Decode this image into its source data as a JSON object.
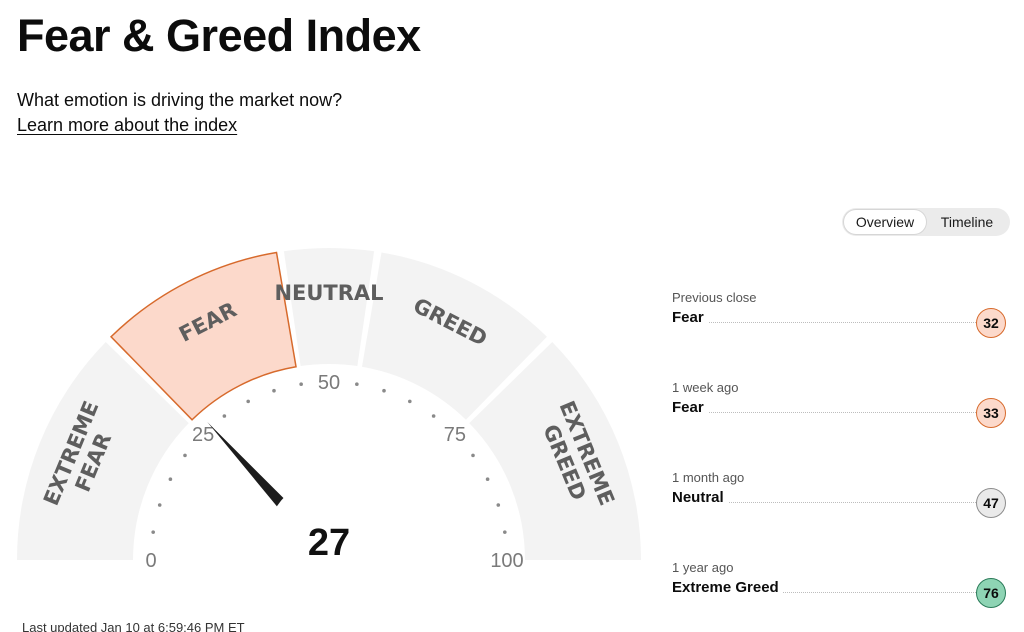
{
  "page": {
    "title": "Fear & Greed Index",
    "subtitle": "What emotion is driving the market now?",
    "learn_link": "Learn more about the index",
    "last_updated": "Last updated Jan 10 at 6:59:46 PM ET"
  },
  "toggle": {
    "options": [
      "Overview",
      "Timeline"
    ],
    "selected": "Overview"
  },
  "gauge": {
    "value": 27,
    "value_label": "27",
    "segments": [
      "EXTREME FEAR",
      "FEAR",
      "NEUTRAL",
      "GREED",
      "EXTREME GREED"
    ],
    "active_segment": "FEAR",
    "scale_labels": [
      "0",
      "25",
      "50",
      "75",
      "100"
    ]
  },
  "history": [
    {
      "label": "Previous close",
      "rating": "Fear",
      "value": "32"
    },
    {
      "label": "1 week ago",
      "rating": "Fear",
      "value": "33"
    },
    {
      "label": "1 month ago",
      "rating": "Neutral",
      "value": "47"
    },
    {
      "label": "1 year ago",
      "rating": "Extreme Greed",
      "value": "76"
    }
  ],
  "colors": {
    "fear_fill": "#fcd9cb",
    "fear_stroke": "#d76a2c",
    "neutral_fill": "#eaeaea",
    "greed_fill": "#8ed4b4",
    "segment_fill": "#f3f3f3"
  }
}
